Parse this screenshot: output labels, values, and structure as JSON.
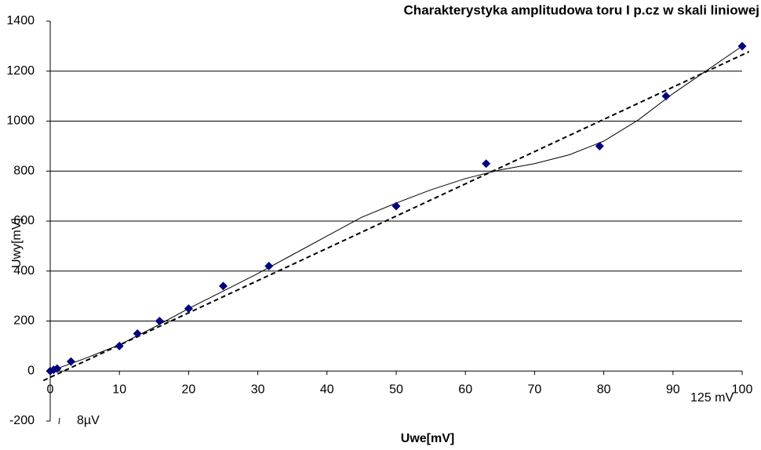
{
  "chart_data": {
    "type": "scatter",
    "title": "Charakterystyka amplitudowa toru I p.cz w skali liniowej",
    "xlabel": "Uwe[mV]",
    "ylabel": "Uwy[mV]",
    "x": [
      0,
      0.5,
      1,
      3,
      10,
      12.6,
      15.8,
      20,
      25,
      31.6,
      50,
      63,
      79.4,
      89,
      100
    ],
    "values": [
      0,
      5,
      10,
      38,
      100,
      150,
      200,
      250,
      340,
      420,
      660,
      830,
      900,
      1100,
      1300
    ],
    "color": "#00007f",
    "fits": [
      {
        "style": "dashed",
        "x": [
          -1,
          101
        ],
        "values": [
          -38,
          1278
        ]
      },
      {
        "style": "solid",
        "x": [
          0,
          5,
          10,
          15,
          20,
          25,
          30,
          35,
          40,
          45,
          50,
          55,
          60,
          65,
          70,
          75,
          80,
          85,
          90,
          95,
          100
        ],
        "values": [
          0,
          50,
          105,
          175,
          250,
          320,
          390,
          465,
          540,
          615,
          672,
          725,
          770,
          805,
          830,
          865,
          920,
          1005,
          1110,
          1205,
          1300
        ]
      }
    ],
    "xlim": [
      0,
      100
    ],
    "ylim": [
      -200,
      1400
    ],
    "xticks": [
      0,
      10,
      20,
      30,
      40,
      50,
      60,
      70,
      80,
      90,
      100
    ],
    "yticks": [
      -200,
      0,
      200,
      400,
      600,
      800,
      1000,
      1200,
      1400
    ],
    "grid": true,
    "annotations": [
      "8µV",
      "125 mV"
    ]
  }
}
